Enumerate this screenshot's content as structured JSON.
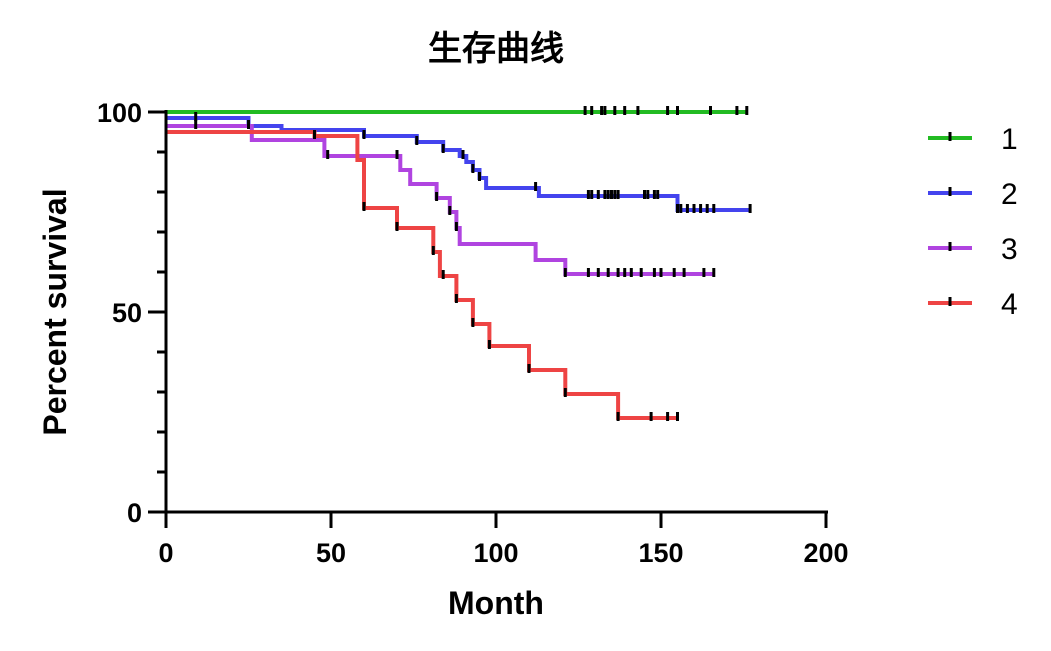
{
  "chart_data": {
    "type": "line",
    "title": "生存曲线",
    "xlabel": "Month",
    "ylabel": "Percent survival",
    "xlim": [
      0,
      200
    ],
    "ylim": [
      0,
      100
    ],
    "x_ticks": [
      "0",
      "50",
      "100",
      "150",
      "200"
    ],
    "y_ticks": [
      "0",
      "50",
      "100"
    ],
    "y_minor_step": 10,
    "x_minor_step": 0,
    "grid": false,
    "legend_position": "right",
    "step": true,
    "series": [
      {
        "name": "1",
        "color": "#22bb22",
        "steps": [
          [
            0,
            100
          ],
          [
            176,
            100
          ]
        ],
        "censor": [
          127,
          129,
          132,
          133,
          136,
          139,
          143,
          152,
          155,
          165,
          173,
          176
        ]
      },
      {
        "name": "2",
        "color": "#4444ee",
        "steps": [
          [
            0,
            98.5
          ],
          [
            25,
            98.5
          ],
          [
            25,
            96.5
          ],
          [
            35,
            96.5
          ],
          [
            35,
            95.5
          ],
          [
            60,
            95.5
          ],
          [
            60,
            94
          ],
          [
            76,
            94
          ],
          [
            76,
            92.5
          ],
          [
            84,
            92.5
          ],
          [
            84,
            90.5
          ],
          [
            89,
            90.5
          ],
          [
            89,
            89
          ],
          [
            91,
            89
          ],
          [
            91,
            87.5
          ],
          [
            93,
            87.5
          ],
          [
            93,
            85.5
          ],
          [
            95,
            85.5
          ],
          [
            95,
            83.5
          ],
          [
            97,
            83.5
          ],
          [
            97,
            81
          ],
          [
            113,
            81
          ],
          [
            113,
            79
          ],
          [
            155,
            79
          ],
          [
            155,
            75.5
          ],
          [
            177,
            75.5
          ]
        ],
        "censor": [
          9,
          25,
          60,
          76,
          84,
          90,
          93,
          95,
          112,
          128,
          129,
          131,
          133,
          134,
          135,
          136,
          137,
          145,
          146,
          148,
          149,
          155,
          156,
          158,
          160,
          162,
          164,
          166,
          177
        ]
      },
      {
        "name": "3",
        "color": "#b044e0",
        "steps": [
          [
            0,
            96.5
          ],
          [
            26,
            96.5
          ],
          [
            26,
            93
          ],
          [
            48,
            93
          ],
          [
            48,
            89
          ],
          [
            71,
            89
          ],
          [
            71,
            85.5
          ],
          [
            74,
            85.5
          ],
          [
            74,
            82
          ],
          [
            82,
            82
          ],
          [
            82,
            78.5
          ],
          [
            86,
            78.5
          ],
          [
            86,
            75
          ],
          [
            88,
            75
          ],
          [
            88,
            71
          ],
          [
            89,
            71
          ],
          [
            89,
            67
          ],
          [
            112,
            67
          ],
          [
            112,
            63
          ],
          [
            121,
            63
          ],
          [
            121,
            59.5
          ],
          [
            166,
            59.5
          ]
        ],
        "censor": [
          9,
          25,
          49,
          70,
          82,
          86,
          88,
          121,
          128,
          131,
          134,
          137,
          139,
          141,
          144,
          148,
          150,
          154,
          157,
          163,
          166
        ]
      },
      {
        "name": "4",
        "color": "#ee4444",
        "steps": [
          [
            0,
            95
          ],
          [
            45,
            95
          ],
          [
            45,
            94
          ],
          [
            58,
            94
          ],
          [
            58,
            88
          ],
          [
            60,
            88
          ],
          [
            60,
            76
          ],
          [
            70,
            76
          ],
          [
            70,
            71
          ],
          [
            81,
            71
          ],
          [
            81,
            65
          ],
          [
            83,
            65
          ],
          [
            83,
            59
          ],
          [
            88,
            59
          ],
          [
            88,
            53
          ],
          [
            93,
            53
          ],
          [
            93,
            47
          ],
          [
            98,
            47
          ],
          [
            98,
            41.5
          ],
          [
            110,
            41.5
          ],
          [
            110,
            35.5
          ],
          [
            121,
            35.5
          ],
          [
            121,
            29.5
          ],
          [
            137,
            29.5
          ],
          [
            137,
            23.5
          ],
          [
            155,
            23.5
          ]
        ],
        "censor": [
          45,
          60,
          70,
          81,
          84,
          88,
          93,
          98,
          110,
          121,
          137,
          147,
          152,
          155
        ]
      }
    ]
  }
}
